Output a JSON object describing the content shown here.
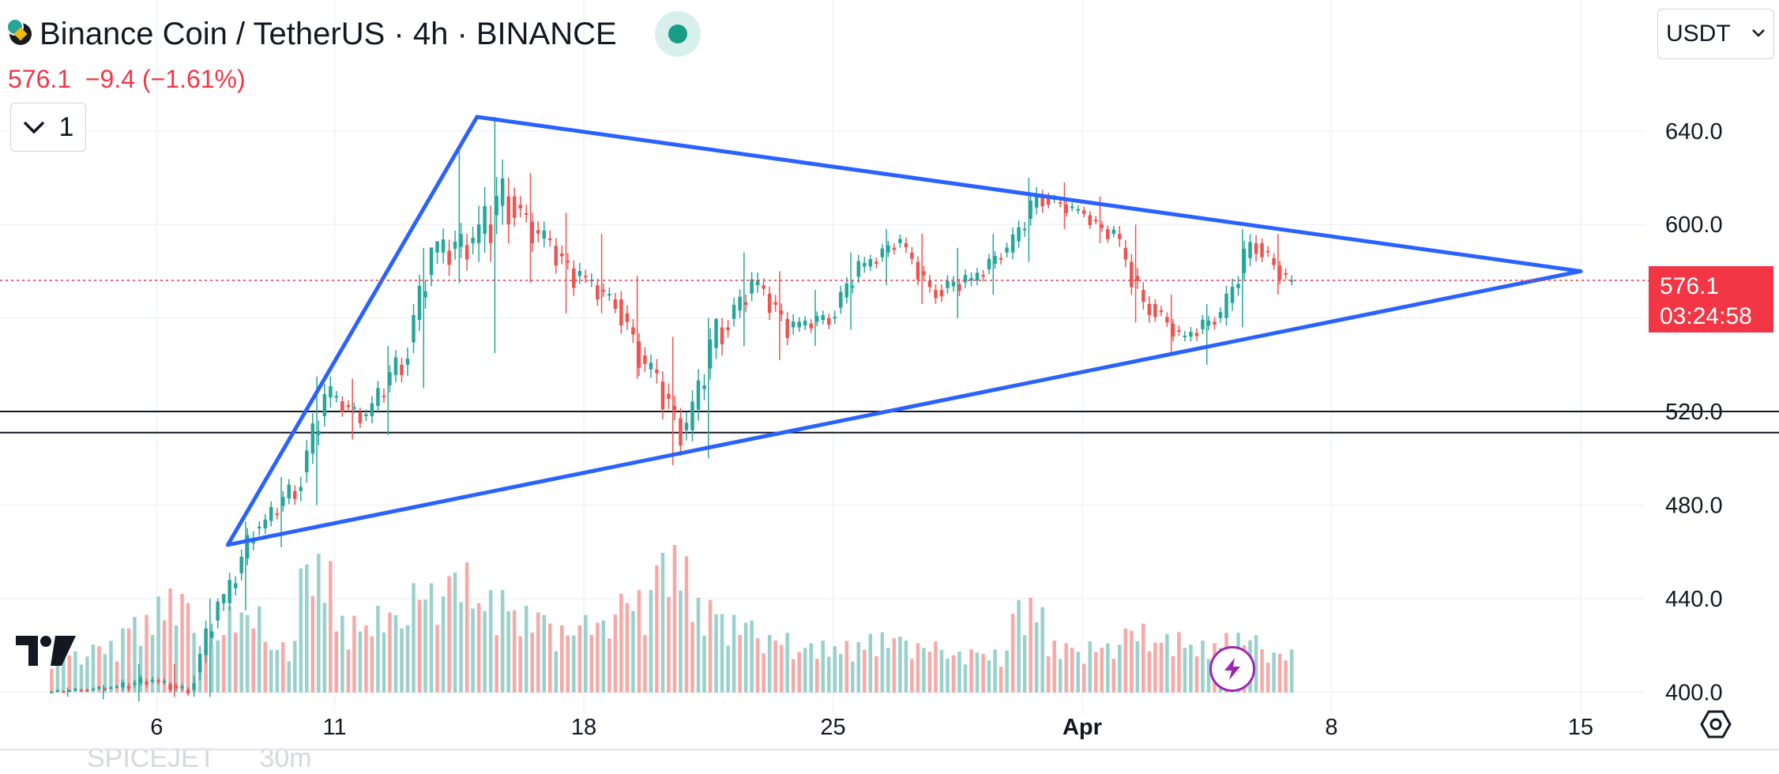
{
  "header": {
    "title": "Binance Coin / TetherUS · 4h · BINANCE",
    "last_price": "576.1",
    "change": "−9.4",
    "change_pct": "(−1.61%)",
    "indicator_count": "1"
  },
  "currency": "USDT",
  "price_label": {
    "price": "576.1",
    "countdown": "03:24:58"
  },
  "colors": {
    "up": "#26a69a",
    "down": "#ef5350",
    "trendline": "#2962ff",
    "price_line": "#f23645"
  },
  "icons": [
    "bnb-coin-icon",
    "chevron-down-icon",
    "tradingview-logo-icon",
    "lightning-icon",
    "settings-icon"
  ],
  "footer_ghost": {
    "symbol": "SPICEJET",
    "interval": "30m"
  },
  "chart_data": {
    "type": "candlestick",
    "interval": "4h",
    "x_ticks": [
      "6",
      "11",
      "18",
      "25",
      "Apr",
      "8",
      "15"
    ],
    "y_ticks": [
      "640.0",
      "600.0",
      "520.0",
      "480.0",
      "440.0",
      "400.0"
    ],
    "ylim": [
      392,
      696
    ],
    "grid": true,
    "last_price": 576.1,
    "horizontal_lines": [
      520,
      511
    ],
    "trendlines": [
      {
        "from": [
          "Mar 8",
          463
        ],
        "to": [
          "Mar 15",
          646
        ]
      },
      {
        "from": [
          "Mar 15",
          646
        ],
        "to": [
          "Apr 15",
          580
        ]
      },
      {
        "from": [
          "Mar 8",
          463
        ],
        "to": [
          "Apr 15",
          580
        ]
      }
    ],
    "series": [
      {
        "date": "Mar 3",
        "ohlc": [
          400,
          402,
          398,
          401
        ],
        "volume": 0.25
      },
      {
        "date": "Mar 4",
        "ohlc": [
          401,
          403,
          397,
          402
        ],
        "volume": 0.3
      },
      {
        "date": "Mar 5",
        "ohlc": [
          402,
          412,
          396,
          405
        ],
        "volume": 0.45
      },
      {
        "date": "Mar 6",
        "ohlc": [
          405,
          412,
          398,
          401
        ],
        "volume": 0.6
      },
      {
        "date": "Mar 7",
        "ohlc": [
          401,
          440,
          398,
          438
        ],
        "volume": 0.35
      },
      {
        "date": "Mar 8",
        "ohlc": [
          438,
          473,
          435,
          470
        ],
        "volume": 0.5
      },
      {
        "date": "Mar 9",
        "ohlc": [
          470,
          492,
          462,
          486
        ],
        "volume": 0.3
      },
      {
        "date": "Mar 10",
        "ohlc": [
          486,
          535,
          480,
          526
        ],
        "volume": 0.8
      },
      {
        "date": "Mar 11",
        "ohlc": [
          526,
          534,
          508,
          518
        ],
        "volume": 0.45
      },
      {
        "date": "Mar 12",
        "ohlc": [
          518,
          548,
          510,
          540
        ],
        "volume": 0.5
      },
      {
        "date": "Mar 13",
        "ohlc": [
          540,
          590,
          530,
          588
        ],
        "volume": 0.65
      },
      {
        "date": "Mar 14",
        "ohlc": [
          588,
          634,
          575,
          592
        ],
        "volume": 0.75
      },
      {
        "date": "Mar 15",
        "ohlc": [
          592,
          646,
          545,
          612
        ],
        "volume": 0.6
      },
      {
        "date": "Mar 16",
        "ohlc": [
          612,
          622,
          575,
          594
        ],
        "volume": 0.5
      },
      {
        "date": "Mar 17",
        "ohlc": [
          594,
          605,
          562,
          578
        ],
        "volume": 0.4
      },
      {
        "date": "Mar 18",
        "ohlc": [
          578,
          596,
          562,
          568
        ],
        "volume": 0.45
      },
      {
        "date": "Mar 19",
        "ohlc": [
          568,
          578,
          534,
          538
        ],
        "volume": 0.6
      },
      {
        "date": "Mar 20",
        "ohlc": [
          538,
          552,
          497,
          512
        ],
        "volume": 0.85
      },
      {
        "date": "Mar 21",
        "ohlc": [
          512,
          560,
          500,
          556
        ],
        "volume": 0.55
      },
      {
        "date": "Mar 22",
        "ohlc": [
          556,
          588,
          548,
          574
        ],
        "volume": 0.45
      },
      {
        "date": "Mar 23",
        "ohlc": [
          574,
          580,
          542,
          556
        ],
        "volume": 0.35
      },
      {
        "date": "Mar 24",
        "ohlc": [
          556,
          572,
          548,
          560
        ],
        "volume": 0.3
      },
      {
        "date": "Mar 25",
        "ohlc": [
          560,
          588,
          555,
          582
        ],
        "volume": 0.3
      },
      {
        "date": "Mar 26",
        "ohlc": [
          582,
          598,
          574,
          592
        ],
        "volume": 0.35
      },
      {
        "date": "Mar 27",
        "ohlc": [
          592,
          596,
          566,
          572
        ],
        "volume": 0.3
      },
      {
        "date": "Mar 28",
        "ohlc": [
          572,
          590,
          560,
          576
        ],
        "volume": 0.25
      },
      {
        "date": "Mar 29",
        "ohlc": [
          576,
          596,
          570,
          588
        ],
        "volume": 0.25
      },
      {
        "date": "Mar 30",
        "ohlc": [
          588,
          620,
          584,
          612
        ],
        "volume": 0.55
      },
      {
        "date": "Mar 31",
        "ohlc": [
          612,
          618,
          598,
          606
        ],
        "volume": 0.3
      },
      {
        "date": "Apr 1",
        "ohlc": [
          606,
          612,
          592,
          596
        ],
        "volume": 0.3
      },
      {
        "date": "Apr 2",
        "ohlc": [
          596,
          600,
          558,
          566
        ],
        "volume": 0.4
      },
      {
        "date": "Apr 3",
        "ohlc": [
          566,
          570,
          545,
          552
        ],
        "volume": 0.35
      },
      {
        "date": "Apr 4",
        "ohlc": [
          552,
          566,
          540,
          560
        ],
        "volume": 0.3
      },
      {
        "date": "Apr 5",
        "ohlc": [
          560,
          598,
          556,
          592
        ],
        "volume": 0.35
      },
      {
        "date": "Apr 6",
        "ohlc": [
          592,
          596,
          570,
          576
        ],
        "volume": 0.25
      }
    ]
  }
}
